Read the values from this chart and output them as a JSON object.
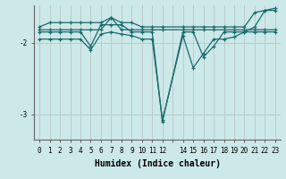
{
  "xlabel": "Humidex (Indice chaleur)",
  "background_color": "#cce8e8",
  "grid_color": "#bbcccc",
  "line_color": "#1a6b6b",
  "xlim": [
    -0.5,
    23.5
  ],
  "ylim": [
    -3.35,
    -1.48
  ],
  "yticks": [
    -3,
    -2
  ],
  "lines": [
    {
      "x": [
        0,
        1,
        2,
        3,
        4,
        5,
        6,
        7,
        8,
        9,
        10,
        11,
        12,
        14,
        15,
        16,
        17,
        18,
        19,
        20,
        21,
        22,
        23
      ],
      "y": [
        -1.85,
        -1.85,
        -1.85,
        -1.85,
        -1.85,
        -2.05,
        -1.75,
        -1.75,
        -1.75,
        -1.85,
        -1.85,
        -1.85,
        -3.1,
        -1.85,
        -1.85,
        -2.2,
        -2.05,
        -1.85,
        -1.85,
        -1.85,
        -1.85,
        -1.85,
        -1.85
      ]
    },
    {
      "x": [
        0,
        1,
        2,
        3,
        4,
        5,
        6,
        7,
        8,
        9,
        10,
        11,
        12,
        14,
        15,
        16,
        17,
        18,
        19,
        20,
        21,
        22,
        23
      ],
      "y": [
        -1.78,
        -1.72,
        -1.72,
        -1.72,
        -1.72,
        -1.72,
        -1.72,
        -1.65,
        -1.72,
        -1.72,
        -1.78,
        -1.78,
        -1.78,
        -1.78,
        -1.78,
        -1.78,
        -1.78,
        -1.78,
        -1.78,
        -1.78,
        -1.58,
        -1.55,
        -1.55
      ]
    },
    {
      "x": [
        0,
        1,
        2,
        3,
        4,
        5,
        6,
        7,
        8,
        9,
        10,
        11,
        12,
        14,
        15,
        16,
        17,
        18,
        19,
        20,
        21,
        22,
        23
      ],
      "y": [
        -1.82,
        -1.82,
        -1.82,
        -1.82,
        -1.82,
        -1.82,
        -1.82,
        -1.65,
        -1.82,
        -1.82,
        -1.82,
        -1.82,
        -1.82,
        -1.82,
        -1.82,
        -1.82,
        -1.82,
        -1.82,
        -1.82,
        -1.82,
        -1.82,
        -1.82,
        -1.82
      ]
    },
    {
      "x": [
        0,
        1,
        2,
        3,
        4,
        5,
        6,
        7,
        8,
        9,
        10,
        11,
        12,
        14,
        15,
        16,
        17,
        18,
        19,
        20,
        21,
        22,
        23
      ],
      "y": [
        -1.95,
        -1.95,
        -1.95,
        -1.95,
        -1.95,
        -2.1,
        -1.88,
        -1.85,
        -1.88,
        -1.9,
        -1.95,
        -1.95,
        -3.08,
        -1.9,
        -2.35,
        -2.15,
        -1.95,
        -1.95,
        -1.92,
        -1.85,
        -1.78,
        -1.55,
        -1.52
      ]
    }
  ]
}
